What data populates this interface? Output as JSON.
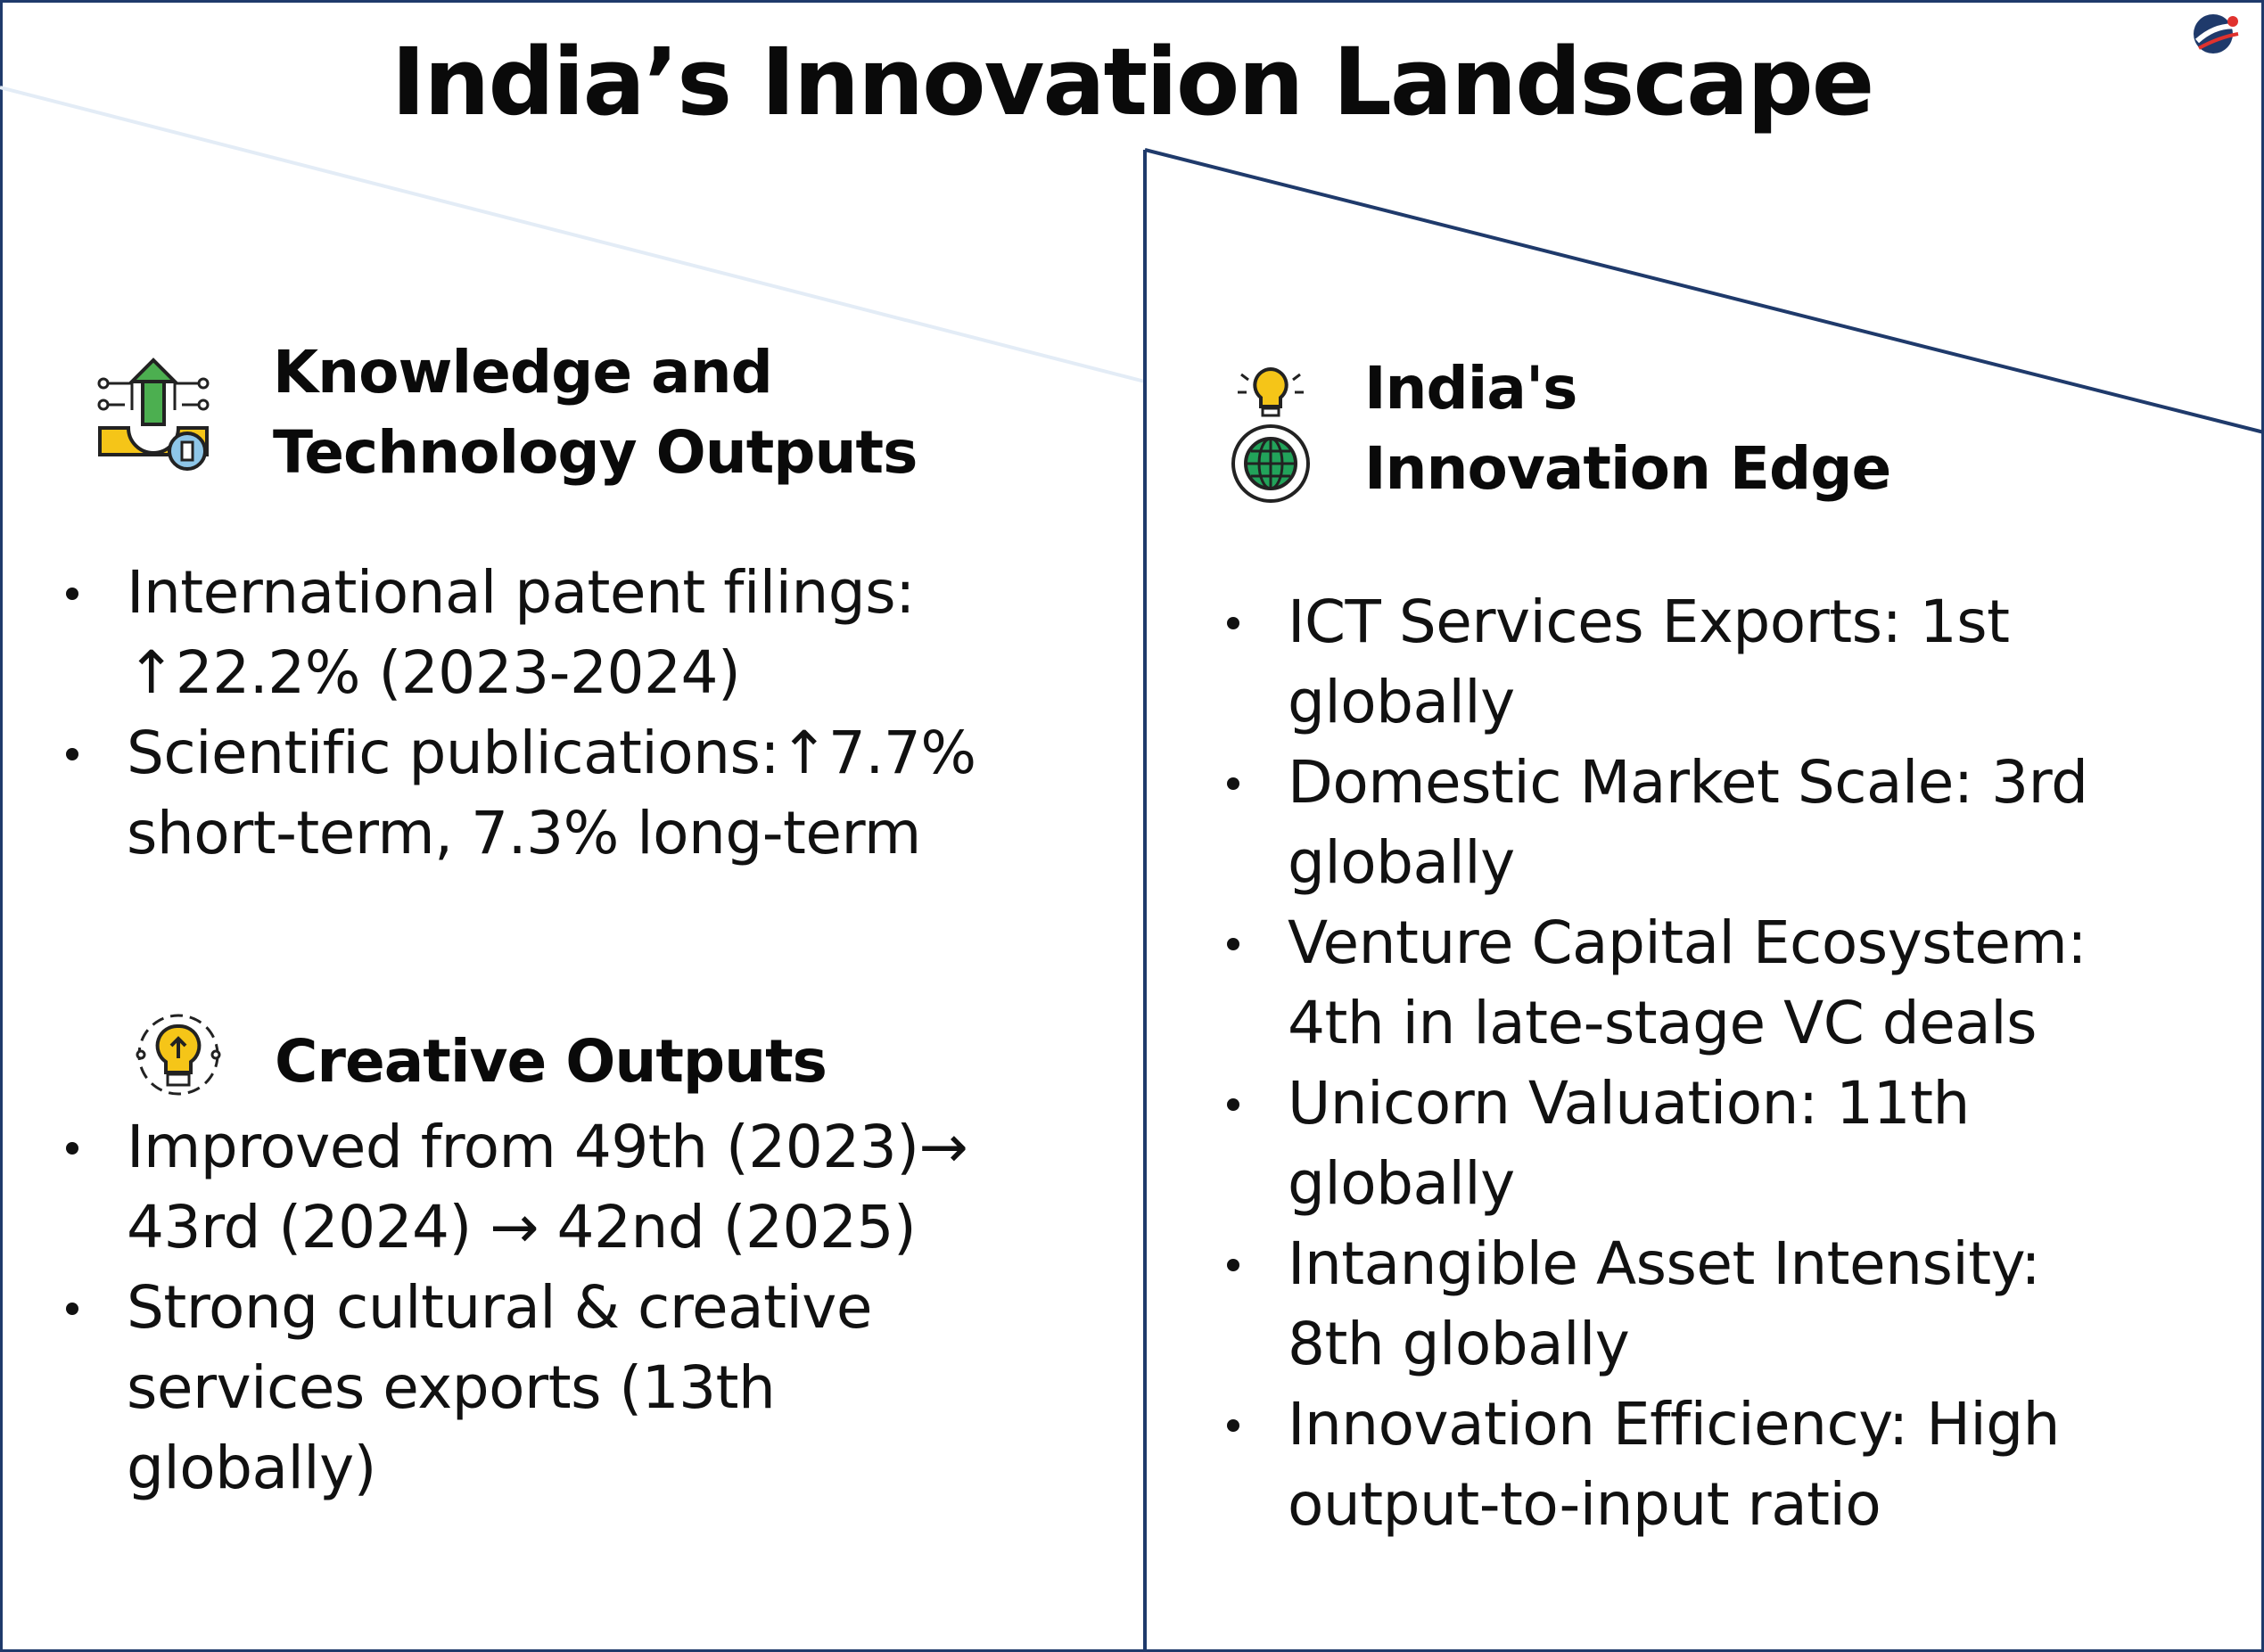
{
  "title": "India’s Innovation Landscape",
  "colors": {
    "border": "#1f3a6b",
    "text": "#111111",
    "icon_yellow": "#f5c518",
    "icon_green": "#22a35a"
  },
  "left": {
    "knowledge": {
      "icon": "gear-upload-icon",
      "heading": [
        "Knowledge and",
        "Technology Outputs"
      ],
      "bullets": [
        [
          "International patent filings:",
          "↑22.2% (2023-2024)"
        ],
        [
          "Scientific publications:↑7.7%",
          "short-term, 7.3% long-term"
        ]
      ]
    },
    "creative": {
      "icon": "lightbulb-network-icon",
      "heading": [
        "Creative Outputs"
      ],
      "bullets": [
        [
          "Improved from 49th (2023)→",
          "43rd (2024) → 42nd (2025)"
        ],
        [
          "Strong cultural & creative",
          "services exports (13th",
          "globally)"
        ]
      ]
    }
  },
  "right": {
    "icon": "bulb-globe-icon",
    "heading": [
      "India's",
      "Innovation Edge"
    ],
    "bullets": [
      [
        "ICT Services Exports: 1st",
        "globally"
      ],
      [
        "Domestic Market Scale: 3rd",
        "globally"
      ],
      [
        "Venture Capital Ecosystem:",
        "4th in late-stage VC deals"
      ],
      [
        "Unicorn Valuation: 11th",
        "globally"
      ],
      [
        "Intangible Asset Intensity:",
        "8th globally"
      ],
      [
        "Innovation Efficiency: High",
        "output-to-input ratio"
      ]
    ]
  }
}
